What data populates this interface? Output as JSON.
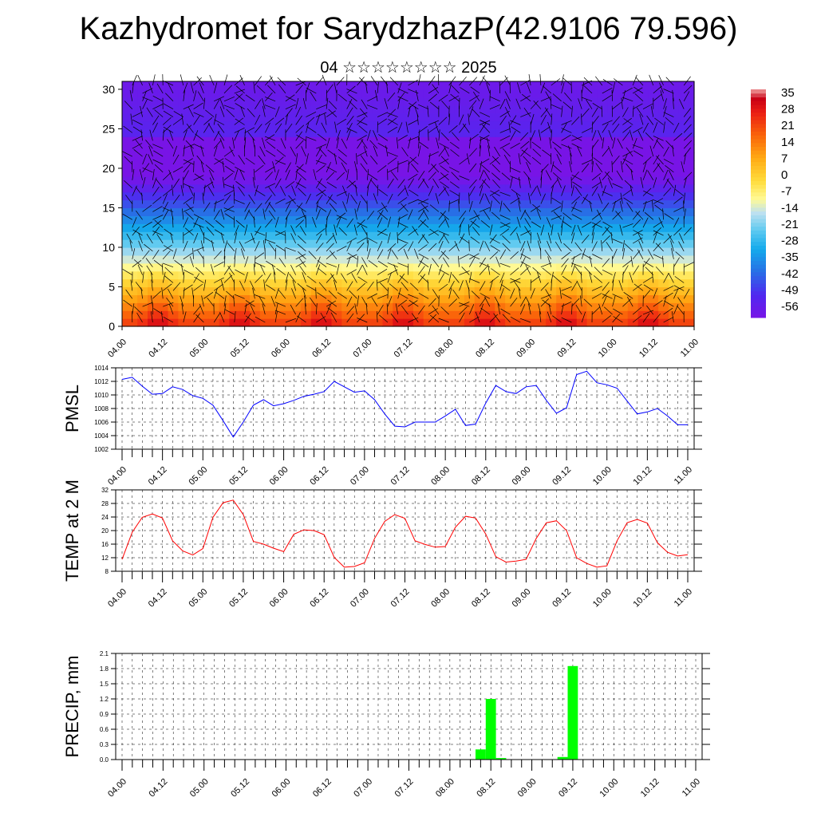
{
  "title": "Kazhydromet for SarydzhazP(42.9106 79.596)",
  "subtitle": "04 ☆☆☆☆☆☆☆☆ 2025",
  "colors": {
    "pmsl_line": "#0000ff",
    "temp_line": "#ff0000",
    "precip_bar": "#00ff00"
  },
  "chart_data": [
    {
      "type": "heatmap",
      "title": "",
      "x_ticks": [
        "04.00",
        "04.12",
        "05.00",
        "05.12",
        "06.00",
        "06.12",
        "07.00",
        "07.12",
        "08.00",
        "08.12",
        "09.00",
        "09.12",
        "10.00",
        "10.12",
        "11.00"
      ],
      "y_ticks": [
        "0",
        "5",
        "10",
        "15",
        "20",
        "25",
        "30"
      ],
      "ylim": [
        0,
        31
      ],
      "colorbar_labels": [
        "35",
        "28",
        "21",
        "14",
        "7",
        "0",
        "-7",
        "-14",
        "-21",
        "-28",
        "-35",
        "-42",
        "-49",
        "-56"
      ],
      "colorbar_range": [
        -60,
        38
      ],
      "overlay": "wind barbs"
    },
    {
      "type": "line",
      "ylabel": "PMSL",
      "x_ticks": [
        "04.00",
        "04.12",
        "05.00",
        "05.12",
        "06.00",
        "06.12",
        "07.00",
        "07.12",
        "08.00",
        "08.12",
        "09.00",
        "09.12",
        "10.00",
        "10.12",
        "11.00"
      ],
      "y_ticks": [
        "1014",
        "1012",
        "1010",
        "1008",
        "1006",
        "1004",
        "1002"
      ],
      "ylim": [
        1002,
        1014
      ],
      "grid": true,
      "x_step_hours": 3,
      "x_start_hours": 0,
      "values": [
        1012.3,
        1012.6,
        1011.3,
        1010.1,
        1010.2,
        1011.2,
        1010.8,
        1009.9,
        1009.5,
        1008.5,
        1006.2,
        1003.8,
        1006.0,
        1008.5,
        1009.3,
        1008.4,
        1008.7,
        1009.2,
        1009.8,
        1010.1,
        1010.5,
        1012.0,
        1011.2,
        1010.4,
        1010.6,
        1009.3,
        1007.2,
        1005.4,
        1005.3,
        1006.0,
        1006.0,
        1006.0,
        1006.9,
        1007.9,
        1005.5,
        1005.7,
        1008.8,
        1011.4,
        1010.5,
        1010.2,
        1011.2,
        1011.4,
        1009.2,
        1007.3,
        1008.1,
        1013.0,
        1013.5,
        1011.8,
        1011.5,
        1011.0,
        1009.1,
        1007.2,
        1007.5,
        1008.0,
        1006.9,
        1005.6,
        1005.6
      ]
    },
    {
      "type": "line",
      "ylabel": "TEMP at 2 M",
      "x_ticks": [
        "04.00",
        "04.12",
        "05.00",
        "05.12",
        "06.00",
        "06.12",
        "07.00",
        "07.12",
        "08.00",
        "08.12",
        "09.00",
        "09.12",
        "10.00",
        "10.12",
        "11.00"
      ],
      "y_ticks": [
        "32",
        "28",
        "24",
        "20",
        "16",
        "12",
        "8"
      ],
      "ylim": [
        8,
        32
      ],
      "grid": true,
      "x_step_hours": 3,
      "x_start_hours": 0,
      "values": [
        11.5,
        19.5,
        23.9,
        24.9,
        23.7,
        17.0,
        14.0,
        12.8,
        14.7,
        23.9,
        28.2,
        29.0,
        24.7,
        16.8,
        16.0,
        14.8,
        13.8,
        18.9,
        20.2,
        20.0,
        18.8,
        12.1,
        9.2,
        9.4,
        10.5,
        17.7,
        22.7,
        24.7,
        23.6,
        17.0,
        15.9,
        15.1,
        15.3,
        21.0,
        24.2,
        23.7,
        19.0,
        12.3,
        10.7,
        11.0,
        11.5,
        17.7,
        22.3,
        22.9,
        20.0,
        12.0,
        10.3,
        9.2,
        9.6,
        17.0,
        22.3,
        23.3,
        22.2,
        16.4,
        13.6,
        12.5,
        12.9
      ]
    },
    {
      "type": "bar",
      "ylabel": "PRECIP, mm",
      "x_ticks": [
        "04.00",
        "04.12",
        "05.00",
        "05.12",
        "06.00",
        "06.12",
        "07.00",
        "07.12",
        "08.00",
        "08.12",
        "09.00",
        "09.12",
        "10.00",
        "10.12",
        "11.00"
      ],
      "y_ticks": [
        "2.1",
        "1.8",
        "1.5",
        "1.2",
        "0.9",
        "0.6",
        "0.3",
        "0.0"
      ],
      "ylim": [
        0,
        2.1
      ],
      "grid": true,
      "bars": [
        {
          "t_hours": 105,
          "value": 0.2
        },
        {
          "t_hours": 108,
          "value": 1.2
        },
        {
          "t_hours": 111,
          "value": 0.03
        },
        {
          "t_hours": 129,
          "value": 0.05
        },
        {
          "t_hours": 132,
          "value": 1.85
        }
      ]
    }
  ]
}
